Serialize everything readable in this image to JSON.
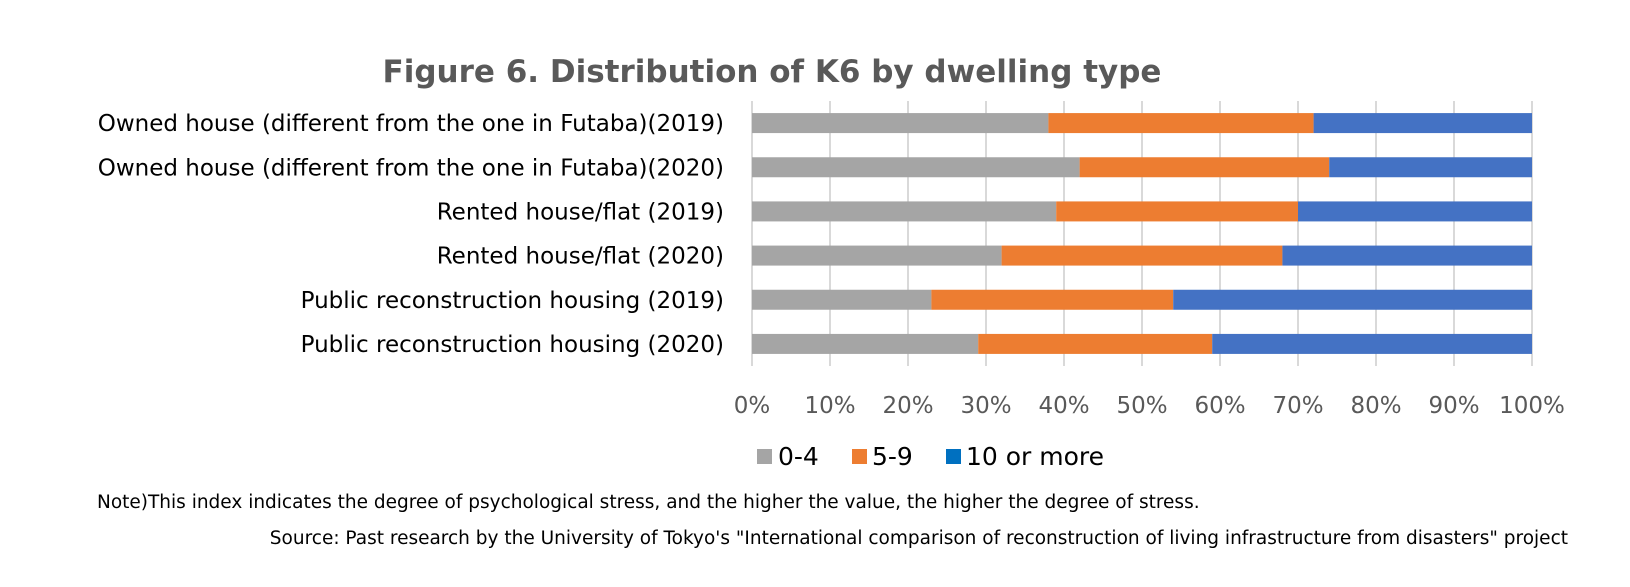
{
  "chart_data": {
    "type": "bar",
    "orientation": "horizontal",
    "stacked": "percent",
    "title": "Figure 6. Distribution of K6 by dwelling type",
    "categories": [
      "Owned house (different from the one in Futaba)(2019)",
      "Owned house (different from the one in Futaba)(2020)",
      "Rented house/flat (2019)",
      "Rented house/flat (2020)",
      "Public reconstruction housing (2019)",
      "Public reconstruction housing (2020)"
    ],
    "series": [
      {
        "name": "0-4",
        "color": "#a5a5a5",
        "values": [
          38,
          42,
          39,
          32,
          23,
          29
        ]
      },
      {
        "name": "5-9",
        "color": "#ed7d31",
        "values": [
          34,
          32,
          31,
          36,
          31,
          30
        ]
      },
      {
        "name": "10 or more",
        "color": "#4472c4",
        "values": [
          28,
          26,
          30,
          32,
          46,
          41
        ]
      }
    ],
    "xlim": [
      0,
      100
    ],
    "xticks": [
      "0%",
      "10%",
      "20%",
      "30%",
      "40%",
      "50%",
      "60%",
      "70%",
      "80%",
      "90%",
      "100%"
    ],
    "grid": true,
    "legend_position": "bottom",
    "legend_swatch_colors": [
      "#a5a5a5",
      "#ed7d31",
      "#0070c0"
    ]
  },
  "notes": {
    "note": "Note)This index indicates the degree of psychological stress, and the higher the value, the higher the degree of stress.",
    "source": "Source: Past research by the University of Tokyo's \"International comparison of reconstruction of living infrastructure from disasters\" project"
  }
}
